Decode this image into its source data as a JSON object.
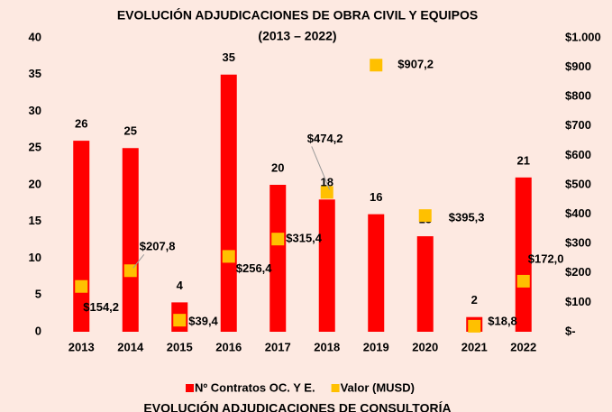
{
  "chart_data": {
    "type": "bar",
    "title": "EVOLUCIÓN ADJUDICACIONES DE OBRA CIVIL Y EQUIPOS",
    "subtitle": "(2013 – 2022)",
    "categories": [
      "2013",
      "2014",
      "2015",
      "2016",
      "2017",
      "2018",
      "2019",
      "2020",
      "2021",
      "2022"
    ],
    "series": [
      {
        "name": "Nº Contratos OC. Y E.",
        "type": "bar",
        "color": "#ff0000",
        "axis": "y",
        "values": [
          26,
          25,
          4,
          35,
          20,
          18,
          16,
          13,
          2,
          21
        ]
      },
      {
        "name": "Valor (MUSD)",
        "type": "scatter",
        "color": "#ffc000",
        "axis": "y2",
        "values": [
          154.2,
          207.8,
          39.4,
          256.4,
          315.4,
          474.2,
          907.2,
          395.3,
          18.8,
          172.0
        ],
        "value_labels": [
          "$154,2",
          "$207,8",
          "$39,4",
          "$256,4",
          "$315,4",
          "$474,2",
          "$907,2",
          "$395,3",
          "$18,8",
          "$172,0"
        ]
      }
    ],
    "ylim": [
      0,
      40
    ],
    "yticks": [
      0,
      5,
      10,
      15,
      20,
      25,
      30,
      35,
      40
    ],
    "y2lim": [
      0,
      1000
    ],
    "y2ticks": [
      {
        "value": 0,
        "label": "$-"
      },
      {
        "value": 100,
        "label": "$100"
      },
      {
        "value": 200,
        "label": "$200"
      },
      {
        "value": 300,
        "label": "$300"
      },
      {
        "value": 400,
        "label": "$400"
      },
      {
        "value": 500,
        "label": "$500"
      },
      {
        "value": 600,
        "label": "$600"
      },
      {
        "value": 700,
        "label": "$700"
      },
      {
        "value": 800,
        "label": "$800"
      },
      {
        "value": 900,
        "label": "$900"
      },
      {
        "value": 1000,
        "label": "$1.000"
      }
    ],
    "grid": false,
    "legend": "bottom"
  },
  "next_chart_title": "EVOLUCIÓN ADJUDICACIONES DE CONSULTORÍA"
}
